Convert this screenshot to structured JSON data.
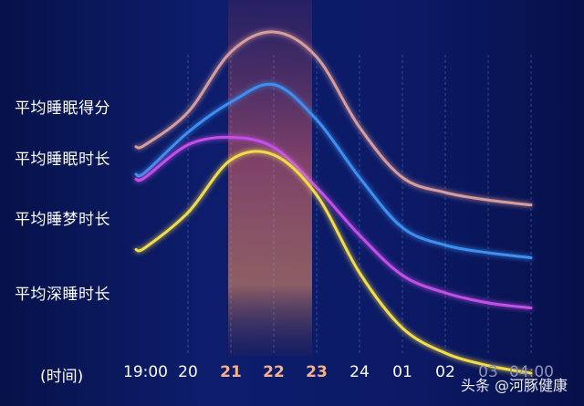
{
  "chart_data": {
    "type": "line",
    "x_axis_label": "(时间)",
    "categories": [
      "19:00",
      "20",
      "21",
      "22",
      "23",
      "24",
      "01",
      "02",
      "03",
      "04:00"
    ],
    "highlight_categories": [
      "21",
      "22",
      "23"
    ],
    "y_scale": "relative (no numeric axis shown)",
    "series": [
      {
        "name": "平均睡眠得分",
        "color": "#d79c9c",
        "values": [
          0.55,
          0.68,
          0.92,
          1.0,
          0.9,
          0.62,
          0.42,
          0.36,
          0.33,
          0.31
        ]
      },
      {
        "name": "平均睡眠时长",
        "color": "#3d8ff0",
        "values": [
          0.44,
          0.6,
          0.72,
          0.79,
          0.65,
          0.42,
          0.22,
          0.15,
          0.12,
          0.1
        ]
      },
      {
        "name": "平均睡梦时长",
        "color": "#c44fe8",
        "values": [
          0.42,
          0.55,
          0.58,
          0.54,
          0.38,
          0.19,
          0.03,
          -0.04,
          -0.08,
          -0.1
        ]
      },
      {
        "name": "平均深睡时长",
        "color": "#f2dc48",
        "values": [
          0.14,
          0.28,
          0.49,
          0.51,
          0.35,
          0.04,
          -0.18,
          -0.28,
          -0.33,
          -0.36
        ]
      }
    ],
    "grid": "vertical dashed lines at each time tick",
    "legend": "series names at left, beside each curve"
  },
  "colors": {
    "highlight_tick": "#f2b28e",
    "normal_tick": "#ffffff",
    "faded_tick": "#8b93b8"
  },
  "faded_categories": [
    "03",
    "04:00"
  ],
  "watermark": "头条 @河豚健康"
}
